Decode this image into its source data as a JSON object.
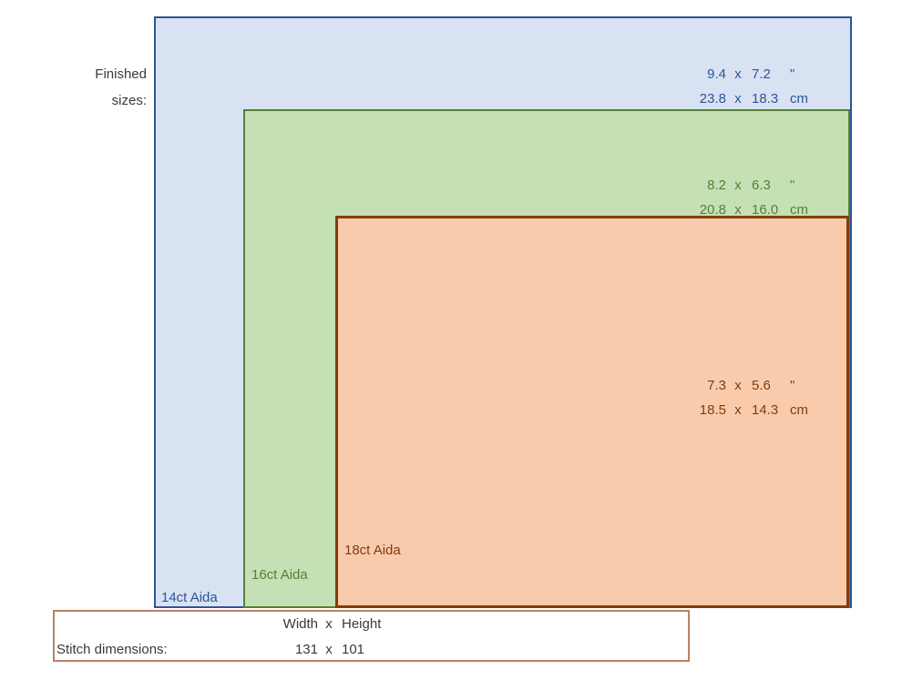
{
  "finished_sizes_label": {
    "line1": "Finished",
    "line2": "sizes:"
  },
  "fabrics": [
    {
      "label": "14ct Aida",
      "inches": {
        "width": "9.4",
        "sep": "x",
        "height": "7.2",
        "unit": "\""
      },
      "cm": {
        "width": "23.8",
        "sep": "x",
        "height": "18.3",
        "unit": "cm"
      },
      "fill": "#d9e2f3",
      "border": "#2e5597",
      "text_color": "#2e5597"
    },
    {
      "label": "16ct Aida",
      "inches": {
        "width": "8.2",
        "sep": "x",
        "height": "6.3",
        "unit": "\""
      },
      "cm": {
        "width": "20.8",
        "sep": "x",
        "height": "16.0",
        "unit": "cm"
      },
      "fill": "#c5e0b4",
      "border": "#538135",
      "text_color": "#538135"
    },
    {
      "label": "18ct Aida",
      "inches": {
        "width": "7.3",
        "sep": "x",
        "height": "5.6",
        "unit": "\""
      },
      "cm": {
        "width": "18.5",
        "sep": "x",
        "height": "14.3",
        "unit": "cm"
      },
      "fill": "#f8cbad",
      "border": "#843c0c",
      "text_color": "#843c0c"
    }
  ],
  "stitch_dimensions": {
    "label": "Stitch dimensions:",
    "header": {
      "width": "Width",
      "sep": "x",
      "height": "Height"
    },
    "values": {
      "width": "131",
      "sep": "x",
      "height": "101"
    },
    "border_color": "#b98164",
    "text_color": "#3a3a3a"
  }
}
